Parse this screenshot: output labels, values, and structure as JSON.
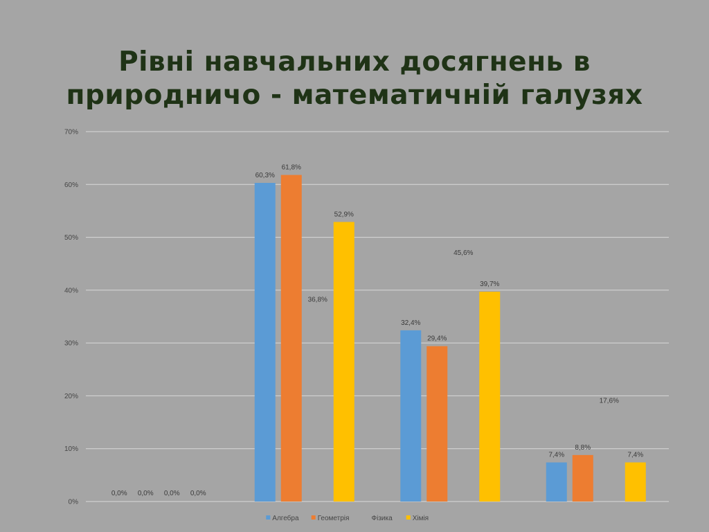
{
  "slide": {
    "title_line1": "Рівні навчальних досягнень в",
    "title_line2": "природничо - математичній галузях"
  },
  "colors": {
    "background": "#a5a5a5",
    "title": "#1f3316",
    "gridline": "#d9d9d9"
  },
  "chart_data": {
    "type": "bar",
    "title": "",
    "xlabel": "",
    "ylabel": "",
    "ylim": [
      0,
      70
    ],
    "y_unit": "%",
    "y_ticks": [
      "0%",
      "10%",
      "20%",
      "30%",
      "40%",
      "50%",
      "60%",
      "70%"
    ],
    "grid": true,
    "legend_position": "bottom",
    "categories": [
      "",
      "",
      "",
      ""
    ],
    "series": [
      {
        "name": "Алгебра",
        "color": "#5b9bd5",
        "values": [
          0,
          60.3,
          32.4,
          7.4
        ],
        "labels": [
          "0,0%",
          "60,3%",
          "32,4%",
          "7,4%"
        ],
        "visible": true
      },
      {
        "name": "Геометрія",
        "color": "#ed7d31",
        "values": [
          0,
          61.8,
          29.4,
          8.8
        ],
        "labels": [
          "0,0%",
          "61,8%",
          "29,4%",
          "8,8%"
        ],
        "visible": true
      },
      {
        "name": "Фізика",
        "color": "#a5a5a5",
        "values": [
          0,
          36.8,
          45.6,
          17.6
        ],
        "labels": [
          "0,0%",
          "36,8%",
          "45,6%",
          "17,6%"
        ],
        "visible": false
      },
      {
        "name": "Хімія",
        "color": "#ffc000",
        "values": [
          0,
          52.9,
          39.7,
          7.4
        ],
        "labels": [
          "0,0%",
          "52,9%",
          "39,7%",
          "7,4%"
        ],
        "visible": true
      }
    ]
  }
}
